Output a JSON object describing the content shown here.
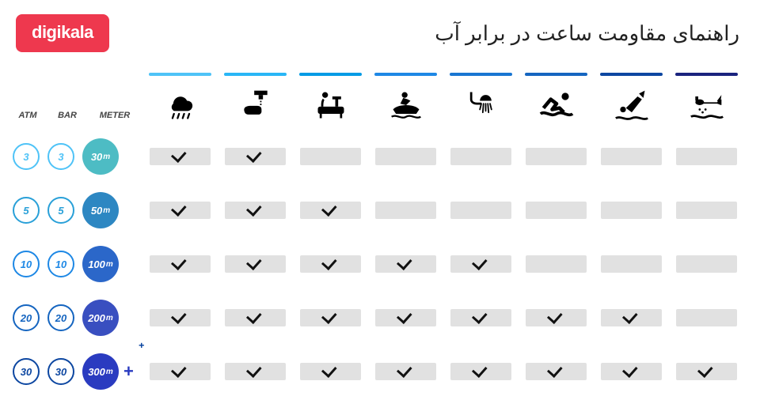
{
  "header": {
    "logo": "digikala",
    "logo_bg": "#ee384e",
    "title": "راهنمای مقاومت ساعت در برابر آب"
  },
  "legend": {
    "atm": "ATM",
    "bar": "BAR",
    "meter": "METER"
  },
  "columns": [
    {
      "name": "rain",
      "bar_color": "#4fc3f7"
    },
    {
      "name": "wash-hands",
      "bar_color": "#29b6f6"
    },
    {
      "name": "bathing",
      "bar_color": "#039be5"
    },
    {
      "name": "jetski",
      "bar_color": "#1e88e5"
    },
    {
      "name": "shower",
      "bar_color": "#1976d2"
    },
    {
      "name": "swimming",
      "bar_color": "#1565c0"
    },
    {
      "name": "diving",
      "bar_color": "#0d47a1"
    },
    {
      "name": "scuba",
      "bar_color": "#1a237e"
    }
  ],
  "rows": [
    {
      "atm": "3",
      "bar": "3",
      "meter": "30",
      "unit": "m",
      "ring_color": "#4fc3f7",
      "text_color": "#4fc3f7",
      "meter_bg": "#4dbcc4",
      "plus": false,
      "checks": [
        1,
        1,
        0,
        0,
        0,
        0,
        0,
        0
      ]
    },
    {
      "atm": "5",
      "bar": "5",
      "meter": "50",
      "unit": "m",
      "ring_color": "#29a0d8",
      "text_color": "#29a0d8",
      "meter_bg": "#2d87c2",
      "plus": false,
      "checks": [
        1,
        1,
        1,
        0,
        0,
        0,
        0,
        0
      ]
    },
    {
      "atm": "10",
      "bar": "10",
      "meter": "100",
      "unit": "m",
      "ring_color": "#1e88e5",
      "text_color": "#1e88e5",
      "meter_bg": "#2b67c9",
      "plus": false,
      "checks": [
        1,
        1,
        1,
        1,
        1,
        0,
        0,
        0
      ]
    },
    {
      "atm": "20",
      "bar": "20",
      "meter": "200",
      "unit": "m",
      "ring_color": "#1565c0",
      "text_color": "#1565c0",
      "meter_bg": "#394fc0",
      "plus": false,
      "checks": [
        1,
        1,
        1,
        1,
        1,
        1,
        1,
        0
      ]
    },
    {
      "atm": "30",
      "bar": "30",
      "meter": "300",
      "unit": "m",
      "ring_color": "#0d47a1",
      "text_color": "#0d47a1",
      "meter_bg": "#2a3bc0",
      "plus": true,
      "checks": [
        1,
        1,
        1,
        1,
        1,
        1,
        1,
        1
      ]
    }
  ],
  "style": {
    "cell_bg": "#e1e1e1",
    "check_color": "#111111",
    "icons": {
      "rain": "☁",
      "wash-hands": "🚰",
      "bathing": "🛁",
      "jetski": "🏍",
      "shower": "🚿",
      "swimming": "🏊",
      "diving": "🤿",
      "scuba": "🐠"
    }
  }
}
